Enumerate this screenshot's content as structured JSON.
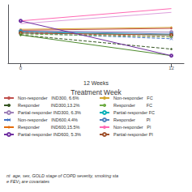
{
  "chart_data": {
    "type": "line",
    "title": "Treatment Week",
    "xlabel": "12 Weeks",
    "footnote": "nt  age, sex, GOLD stage of COPD severity, smoking sta\ne FEV₁ are covariates",
    "x": [
      0,
      12
    ],
    "series": [
      {
        "color": "#ff69b4",
        "line_style": "solid",
        "marker": "none",
        "values": [
          55,
          68
        ]
      },
      {
        "color": "#dda0dd",
        "line_style": "solid",
        "marker": "none",
        "values": [
          52,
          64
        ]
      },
      {
        "color": "#d4a830",
        "line_style": "solid",
        "marker": "point",
        "values": [
          46,
          48
        ]
      },
      {
        "color": "#c0504d",
        "line_style": "solid",
        "marker": "point",
        "values": [
          45,
          47
        ]
      },
      {
        "color": "#9e80b8",
        "line_style": "solid",
        "marker": "circle",
        "values": [
          44,
          43
        ]
      },
      {
        "color": "#4f81bd",
        "line_style": "solid",
        "marker": "circle",
        "values": [
          44,
          41
        ]
      },
      {
        "color": "#00b0b8",
        "line_style": "solid",
        "marker": "circle",
        "values": [
          43,
          40
        ]
      },
      {
        "color": "#c0504d",
        "line_style": "dashed",
        "marker": "x",
        "values": [
          43,
          38
        ]
      },
      {
        "color": "#4472c4",
        "line_style": "dashed",
        "marker": "x",
        "values": [
          42,
          36
        ]
      },
      {
        "color": "#a0522d",
        "line_style": "solid",
        "marker": "circle",
        "values": [
          42,
          40
        ]
      },
      {
        "color": "#70ad47",
        "line_style": "dashed",
        "marker": "point",
        "values": [
          41,
          38
        ]
      },
      {
        "color": "#375623",
        "line_style": "dashed",
        "marker": "point",
        "values": [
          40,
          25
        ]
      },
      {
        "color": "#4e8b2e",
        "line_style": "solid",
        "marker": "point",
        "values": [
          40,
          18
        ]
      },
      {
        "color": "#7030a0",
        "line_style": "solid",
        "marker": "circle",
        "values": [
          55,
          18
        ]
      }
    ],
    "legend_entries": [
      {
        "name": "Non-responder   IND300, 6.6%",
        "color": "#c0504d",
        "line_style": "solid",
        "marker": "point"
      },
      {
        "name": "Responder         IND300,13.2%",
        "color": "#375623",
        "line_style": "dashed",
        "marker": "point"
      },
      {
        "name": "Partial-responder IND300, 6.3%",
        "color": "#9e80b8",
        "line_style": "solid",
        "marker": "circle"
      },
      {
        "name": "Non-responder   IND600,4.4%",
        "color": "#4472c4",
        "line_style": "dashed",
        "marker": "x"
      },
      {
        "name": "Responder         IND600,15.5%",
        "color": "#e46c0a",
        "line_style": "solid",
        "marker": "plus"
      },
      {
        "name": "Partial-responder IND600, 5.3%",
        "color": "#7030a0",
        "line_style": "solid",
        "marker": "circle"
      },
      {
        "name": "Non-responder   FC",
        "color": "#d4a830",
        "line_style": "solid",
        "marker": "point"
      },
      {
        "name": "Responder         FC",
        "color": "#70ad47",
        "line_style": "dashed",
        "marker": "point"
      },
      {
        "name": "Partial-responder FC",
        "color": "#00b0b8",
        "line_style": "solid",
        "marker": "circle"
      },
      {
        "name": "Responder         Pl",
        "color": "#4f81bd",
        "line_style": "solid",
        "marker": "circle"
      },
      {
        "name": "Non-responder   Pl",
        "color": "#ff69b4",
        "line_style": "solid",
        "marker": "none"
      },
      {
        "name": "Partial-responder Pl",
        "color": "#a0522d",
        "line_style": "solid",
        "marker": "circle"
      }
    ],
    "xlim": [
      -1,
      13
    ],
    "xticks": [
      0,
      12
    ],
    "ylim": [
      10,
      72
    ],
    "yticks": [],
    "tick_labels": "x",
    "grid": false,
    "legend": "bottom"
  }
}
